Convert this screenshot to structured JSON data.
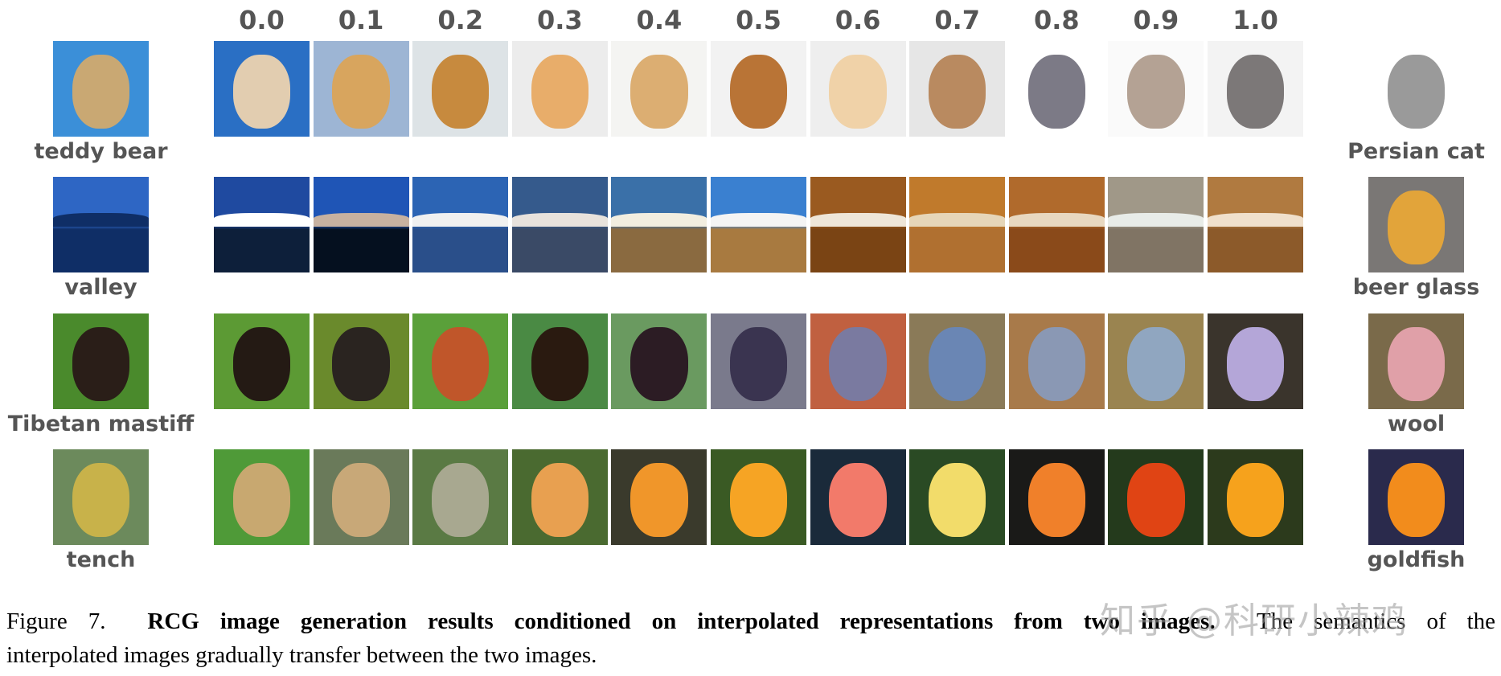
{
  "figure": {
    "column_labels": [
      "0.0",
      "0.1",
      "0.2",
      "0.3",
      "0.4",
      "0.5",
      "0.6",
      "0.7",
      "0.8",
      "0.9",
      "1.0"
    ],
    "rows": [
      {
        "source_label": "teddy bear",
        "target_label": "Persian cat",
        "source_colors": [
          "#3b8fd8",
          "#c9a873"
        ],
        "target_colors": [
          "#ffffff",
          "#9a9a9a"
        ],
        "cells": [
          {
            "bg": "#2a6fc4",
            "fg": "#e2cdb0"
          },
          {
            "bg": "#9db5d4",
            "fg": "#d8a55e"
          },
          {
            "bg": "#dde3e6",
            "fg": "#c78a3e"
          },
          {
            "bg": "#ececec",
            "fg": "#e8ad6a"
          },
          {
            "bg": "#f4f4f2",
            "fg": "#dcae72"
          },
          {
            "bg": "#f2f2f2",
            "fg": "#b97436"
          },
          {
            "bg": "#eeeeee",
            "fg": "#f0d2a8"
          },
          {
            "bg": "#e6e6e6",
            "fg": "#b98a60"
          },
          {
            "bg": "#ffffff",
            "fg": "#7c7a86"
          },
          {
            "bg": "#fafafa",
            "fg": "#b4a294"
          },
          {
            "bg": "#f3f3f3",
            "fg": "#7c7878"
          }
        ]
      },
      {
        "source_label": "valley",
        "target_label": "beer glass",
        "source_colors": [
          "#2e66c4",
          "#0f2e66"
        ],
        "target_colors": [
          "#7a7775",
          "#e2a43a"
        ],
        "cells": [
          {
            "bg": "#1f4aa0",
            "fg": "#ffffff",
            "low": "#0d1f3a"
          },
          {
            "bg": "#1f55b6",
            "fg": "#c7b1a0",
            "low": "#05101f"
          },
          {
            "bg": "#2c64b4",
            "fg": "#f0f0f0",
            "low": "#2a4f8a"
          },
          {
            "bg": "#355a8c",
            "fg": "#e8e2dc",
            "low": "#3a4a66"
          },
          {
            "bg": "#3a70a8",
            "fg": "#f2eee0",
            "low": "#8a6a40"
          },
          {
            "bg": "#3a80d0",
            "fg": "#f4f4f4",
            "low": "#a87a40"
          },
          {
            "bg": "#9a5a20",
            "fg": "#eee6d8",
            "low": "#7a4414"
          },
          {
            "bg": "#c07a2c",
            "fg": "#e6d6b8",
            "low": "#b07030"
          },
          {
            "bg": "#b06a2c",
            "fg": "#e8d8c0",
            "low": "#8a4a1a"
          },
          {
            "bg": "#a09888",
            "fg": "#e8ece8",
            "low": "#807464"
          },
          {
            "bg": "#b07a40",
            "fg": "#f0e0cc",
            "low": "#8c5a2a"
          }
        ]
      },
      {
        "source_label": "Tibetan mastiff",
        "target_label": "wool",
        "source_colors": [
          "#4a8a2c",
          "#2a1e18"
        ],
        "target_colors": [
          "#7a6a4a",
          "#e0a0a8"
        ],
        "cells": [
          {
            "bg": "#5c9a34",
            "fg": "#241a14"
          },
          {
            "bg": "#6a8a2c",
            "fg": "#2a2420"
          },
          {
            "bg": "#5aa03a",
            "fg": "#c0562a"
          },
          {
            "bg": "#4a8a44",
            "fg": "#2a1a10"
          },
          {
            "bg": "#6a9a60",
            "fg": "#2c1c24"
          },
          {
            "bg": "#7a7a8c",
            "fg": "#3a3450"
          },
          {
            "bg": "#c06040",
            "fg": "#7a7aa0"
          },
          {
            "bg": "#8a7a58",
            "fg": "#6a86b4"
          },
          {
            "bg": "#a87a4a",
            "fg": "#8a98b4"
          },
          {
            "bg": "#9a8450",
            "fg": "#90a6c0"
          },
          {
            "bg": "#3a342c",
            "fg": "#b4a6d8"
          }
        ]
      },
      {
        "source_label": "tench",
        "target_label": "goldfish",
        "source_colors": [
          "#6c8a5c",
          "#c8b24a"
        ],
        "target_colors": [
          "#2a2a4c",
          "#f28c1c"
        ],
        "cells": [
          {
            "bg": "#4f9a38",
            "fg": "#c8a870"
          },
          {
            "bg": "#6a7a5a",
            "fg": "#c8a878"
          },
          {
            "bg": "#5a7a44",
            "fg": "#a8a890"
          },
          {
            "bg": "#4a6a30",
            "fg": "#e8a050"
          },
          {
            "bg": "#3a3a2c",
            "fg": "#f0962a"
          },
          {
            "bg": "#3a5a24",
            "fg": "#f6a424"
          },
          {
            "bg": "#1a2a3a",
            "fg": "#f27a6a"
          },
          {
            "bg": "#2a4a24",
            "fg": "#f2dc6a"
          },
          {
            "bg": "#1a1a18",
            "fg": "#f0802a"
          },
          {
            "bg": "#243a1c",
            "fg": "#e04414"
          },
          {
            "bg": "#2c3a1c",
            "fg": "#f6a21c"
          }
        ]
      }
    ]
  },
  "caption": {
    "prefix": "Figure 7.",
    "bold": "RCG image generation results conditioned on interpolated representations from two images.",
    "rest_line1": "The semantics of the",
    "line2": "interpolated images gradually transfer between the two images."
  },
  "watermark": "知乎 @科研小辣鸡"
}
